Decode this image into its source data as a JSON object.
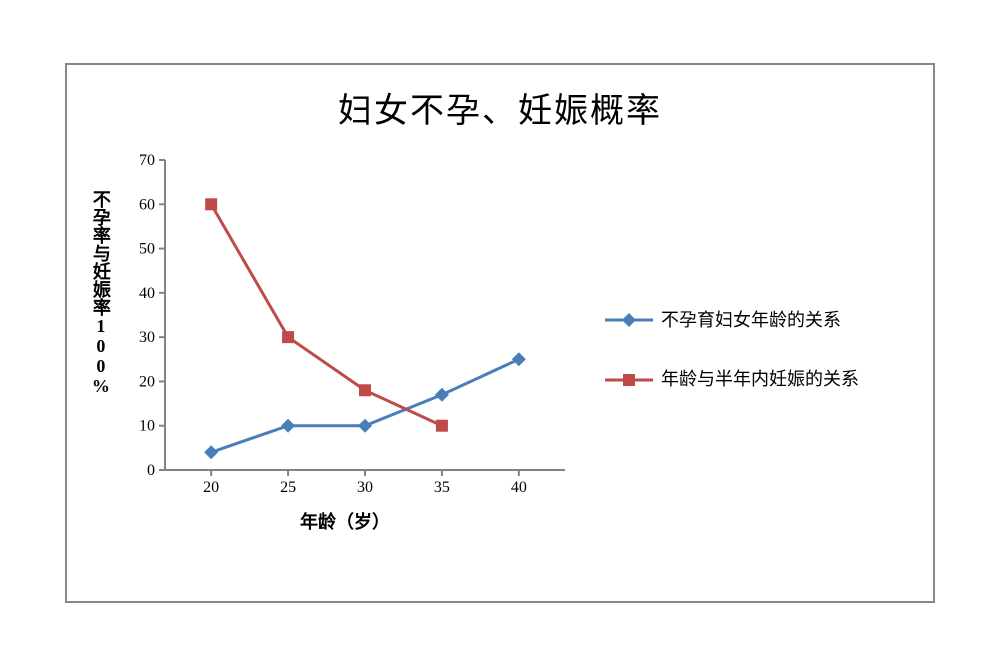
{
  "chart": {
    "type": "line",
    "title": "妇女不孕、妊娠概率",
    "title_fontsize": 34,
    "y_label": "不孕率与妊娠率100%",
    "x_label": "年龄（岁）",
    "label_fontsize": 18,
    "background_color": "#ffffff",
    "frame_border_color": "#888888",
    "axis_color": "#828282",
    "tick_color": "#828282",
    "tick_font_color": "#000000",
    "tick_fontsize": 16,
    "x_ticks": [
      20,
      25,
      30,
      35,
      40
    ],
    "y_ticks": [
      0,
      10,
      20,
      30,
      40,
      50,
      60,
      70
    ],
    "xlim": [
      17,
      43
    ],
    "ylim": [
      0,
      70
    ],
    "series": [
      {
        "name": "不孕育妇女年龄的关系",
        "color": "#4a7ebb",
        "marker": "diamond",
        "marker_size": 10,
        "line_width": 3,
        "x": [
          20,
          25,
          30,
          35,
          40
        ],
        "y": [
          4,
          10,
          10,
          17,
          25
        ]
      },
      {
        "name": "年龄与半年内妊娠的关系",
        "color": "#be4b48",
        "marker": "square",
        "marker_size": 12,
        "line_width": 3,
        "x": [
          20,
          25,
          30,
          35
        ],
        "y": [
          60,
          30,
          18,
          10
        ]
      }
    ]
  }
}
